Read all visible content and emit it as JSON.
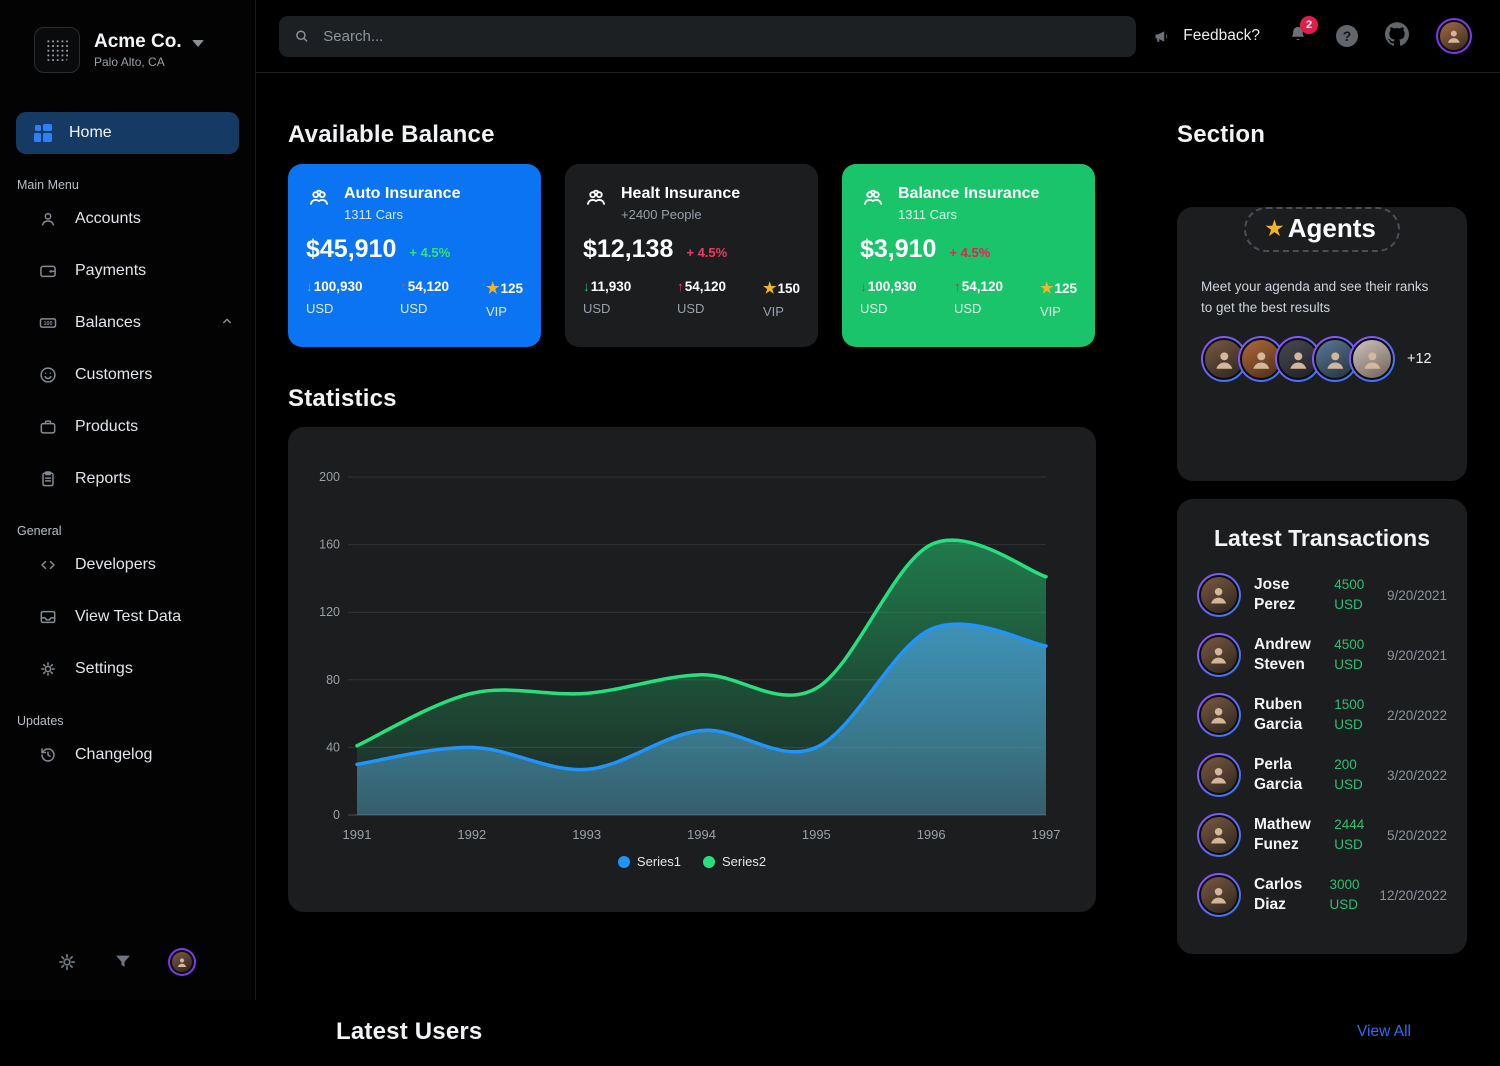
{
  "colors": {
    "card_blue": "#0b74f2",
    "card_dark": "#1b1d1f",
    "card_green": "#19c46a",
    "positive_green": "#35e27a",
    "negative_red": "#ea3b63",
    "link_blue": "#2f6cf6",
    "badge_red": "#e11d48",
    "gold": "#f0b429"
  },
  "sidebar": {
    "company": {
      "name": "Acme Co.",
      "location": "Palo Alto, CA"
    },
    "home": {
      "label": "Home"
    },
    "sections": [
      {
        "label": "Main Menu",
        "items": [
          {
            "label": "Accounts",
            "icon": "user-icon"
          },
          {
            "label": "Payments",
            "icon": "wallet-icon"
          },
          {
            "label": "Balances",
            "icon": "banknote-icon"
          },
          {
            "label": "Customers",
            "icon": "face-icon"
          },
          {
            "label": "Products",
            "icon": "briefcase-icon"
          },
          {
            "label": "Reports",
            "icon": "clipboard-icon"
          }
        ]
      },
      {
        "label": "General",
        "items": [
          {
            "label": "Developers",
            "icon": "code-icon"
          },
          {
            "label": "View Test Data",
            "icon": "inbox-icon"
          },
          {
            "label": "Settings",
            "icon": "gear-icon"
          }
        ]
      },
      {
        "label": "Updates",
        "items": [
          {
            "label": "Changelog",
            "icon": "history-icon"
          }
        ]
      }
    ]
  },
  "topbar": {
    "search_placeholder": "Search...",
    "feedback_label": "Feedback?",
    "notification_count": "2"
  },
  "balance": {
    "title": "Available Balance",
    "cards": [
      {
        "name": "Auto Insurance",
        "subtitle": "1311 Cars",
        "amount": "$45,910",
        "change": "+ 4.5%",
        "change_color": "#35e27a",
        "bg": "#0b74f2",
        "stats": [
          {
            "glyph": "↓",
            "glyph_color": "#35e27a",
            "value": "100,930",
            "unit": "USD"
          },
          {
            "glyph": "↑",
            "glyph_color": "#ea3b63",
            "value": "54,120",
            "unit": "USD"
          },
          {
            "glyph": "★",
            "glyph_color": "#f0b429",
            "value": "125",
            "unit": "VIP"
          }
        ]
      },
      {
        "name": "Healt Insurance",
        "subtitle": "+2400 People",
        "amount": "$12,138",
        "change": "+ 4.5%",
        "change_color": "#ea3b63",
        "bg": "#1b1d1f",
        "stats": [
          {
            "glyph": "↓",
            "glyph_color": "#2ebd6b",
            "value": "11,930",
            "unit": "USD"
          },
          {
            "glyph": "↑",
            "glyph_color": "#ea3b63",
            "value": "54,120",
            "unit": "USD"
          },
          {
            "glyph": "★",
            "glyph_color": "#f0b429",
            "value": "150",
            "unit": "VIP"
          }
        ]
      },
      {
        "name": "Balance Insurance",
        "subtitle": "1311 Cars",
        "amount": "$3,910",
        "change": "+ 4.5%",
        "change_color": "#e02554",
        "bg": "#19c46a",
        "stats": [
          {
            "glyph": "↓",
            "glyph_color": "#e02554",
            "value": "100,930",
            "unit": "USD"
          },
          {
            "glyph": "↑",
            "glyph_color": "#e02554",
            "value": "54,120",
            "unit": "USD"
          },
          {
            "glyph": "★",
            "glyph_color": "#f0b429",
            "value": "125",
            "unit": "VIP"
          }
        ]
      }
    ]
  },
  "statistics": {
    "title": "Statistics"
  },
  "chart_data": {
    "type": "area",
    "x": [
      1991,
      1992,
      1993,
      1994,
      1995,
      1996,
      1997
    ],
    "series": [
      {
        "name": "Series1",
        "color": "#2094fa",
        "values": [
          30,
          40,
          27,
          50,
          40,
          110,
          100
        ]
      },
      {
        "name": "Series2",
        "color": "#27e07d",
        "values": [
          41,
          72,
          72,
          83,
          75,
          160,
          141
        ]
      }
    ],
    "ylim": [
      0,
      200
    ],
    "yticks": [
      0,
      40,
      80,
      120,
      160,
      200
    ],
    "grid": true,
    "legend_position": "bottom"
  },
  "section_panel": {
    "title": "Section",
    "badge_star": "★",
    "badge_label": "Agents",
    "description": "Meet your agenda and see their ranks to get the best results",
    "extra_count": "+12"
  },
  "transactions": {
    "title": "Latest Transactions",
    "rows": [
      {
        "name": "Jose Perez",
        "amount": "4500",
        "currency": "USD",
        "date": "9/20/2021"
      },
      {
        "name": "Andrew Steven",
        "amount": "4500",
        "currency": "USD",
        "date": "9/20/2021"
      },
      {
        "name": "Ruben Garcia",
        "amount": "1500",
        "currency": "USD",
        "date": "2/20/2022"
      },
      {
        "name": "Perla Garcia",
        "amount": "200",
        "currency": "USD",
        "date": "3/20/2022"
      },
      {
        "name": "Mathew Funez",
        "amount": "2444",
        "currency": "USD",
        "date": "5/20/2022"
      },
      {
        "name": "Carlos Diaz",
        "amount": "3000",
        "currency": "USD",
        "date": "12/20/2022"
      }
    ]
  },
  "latest_users": {
    "title": "Latest Users",
    "view_all_label": "View All"
  }
}
